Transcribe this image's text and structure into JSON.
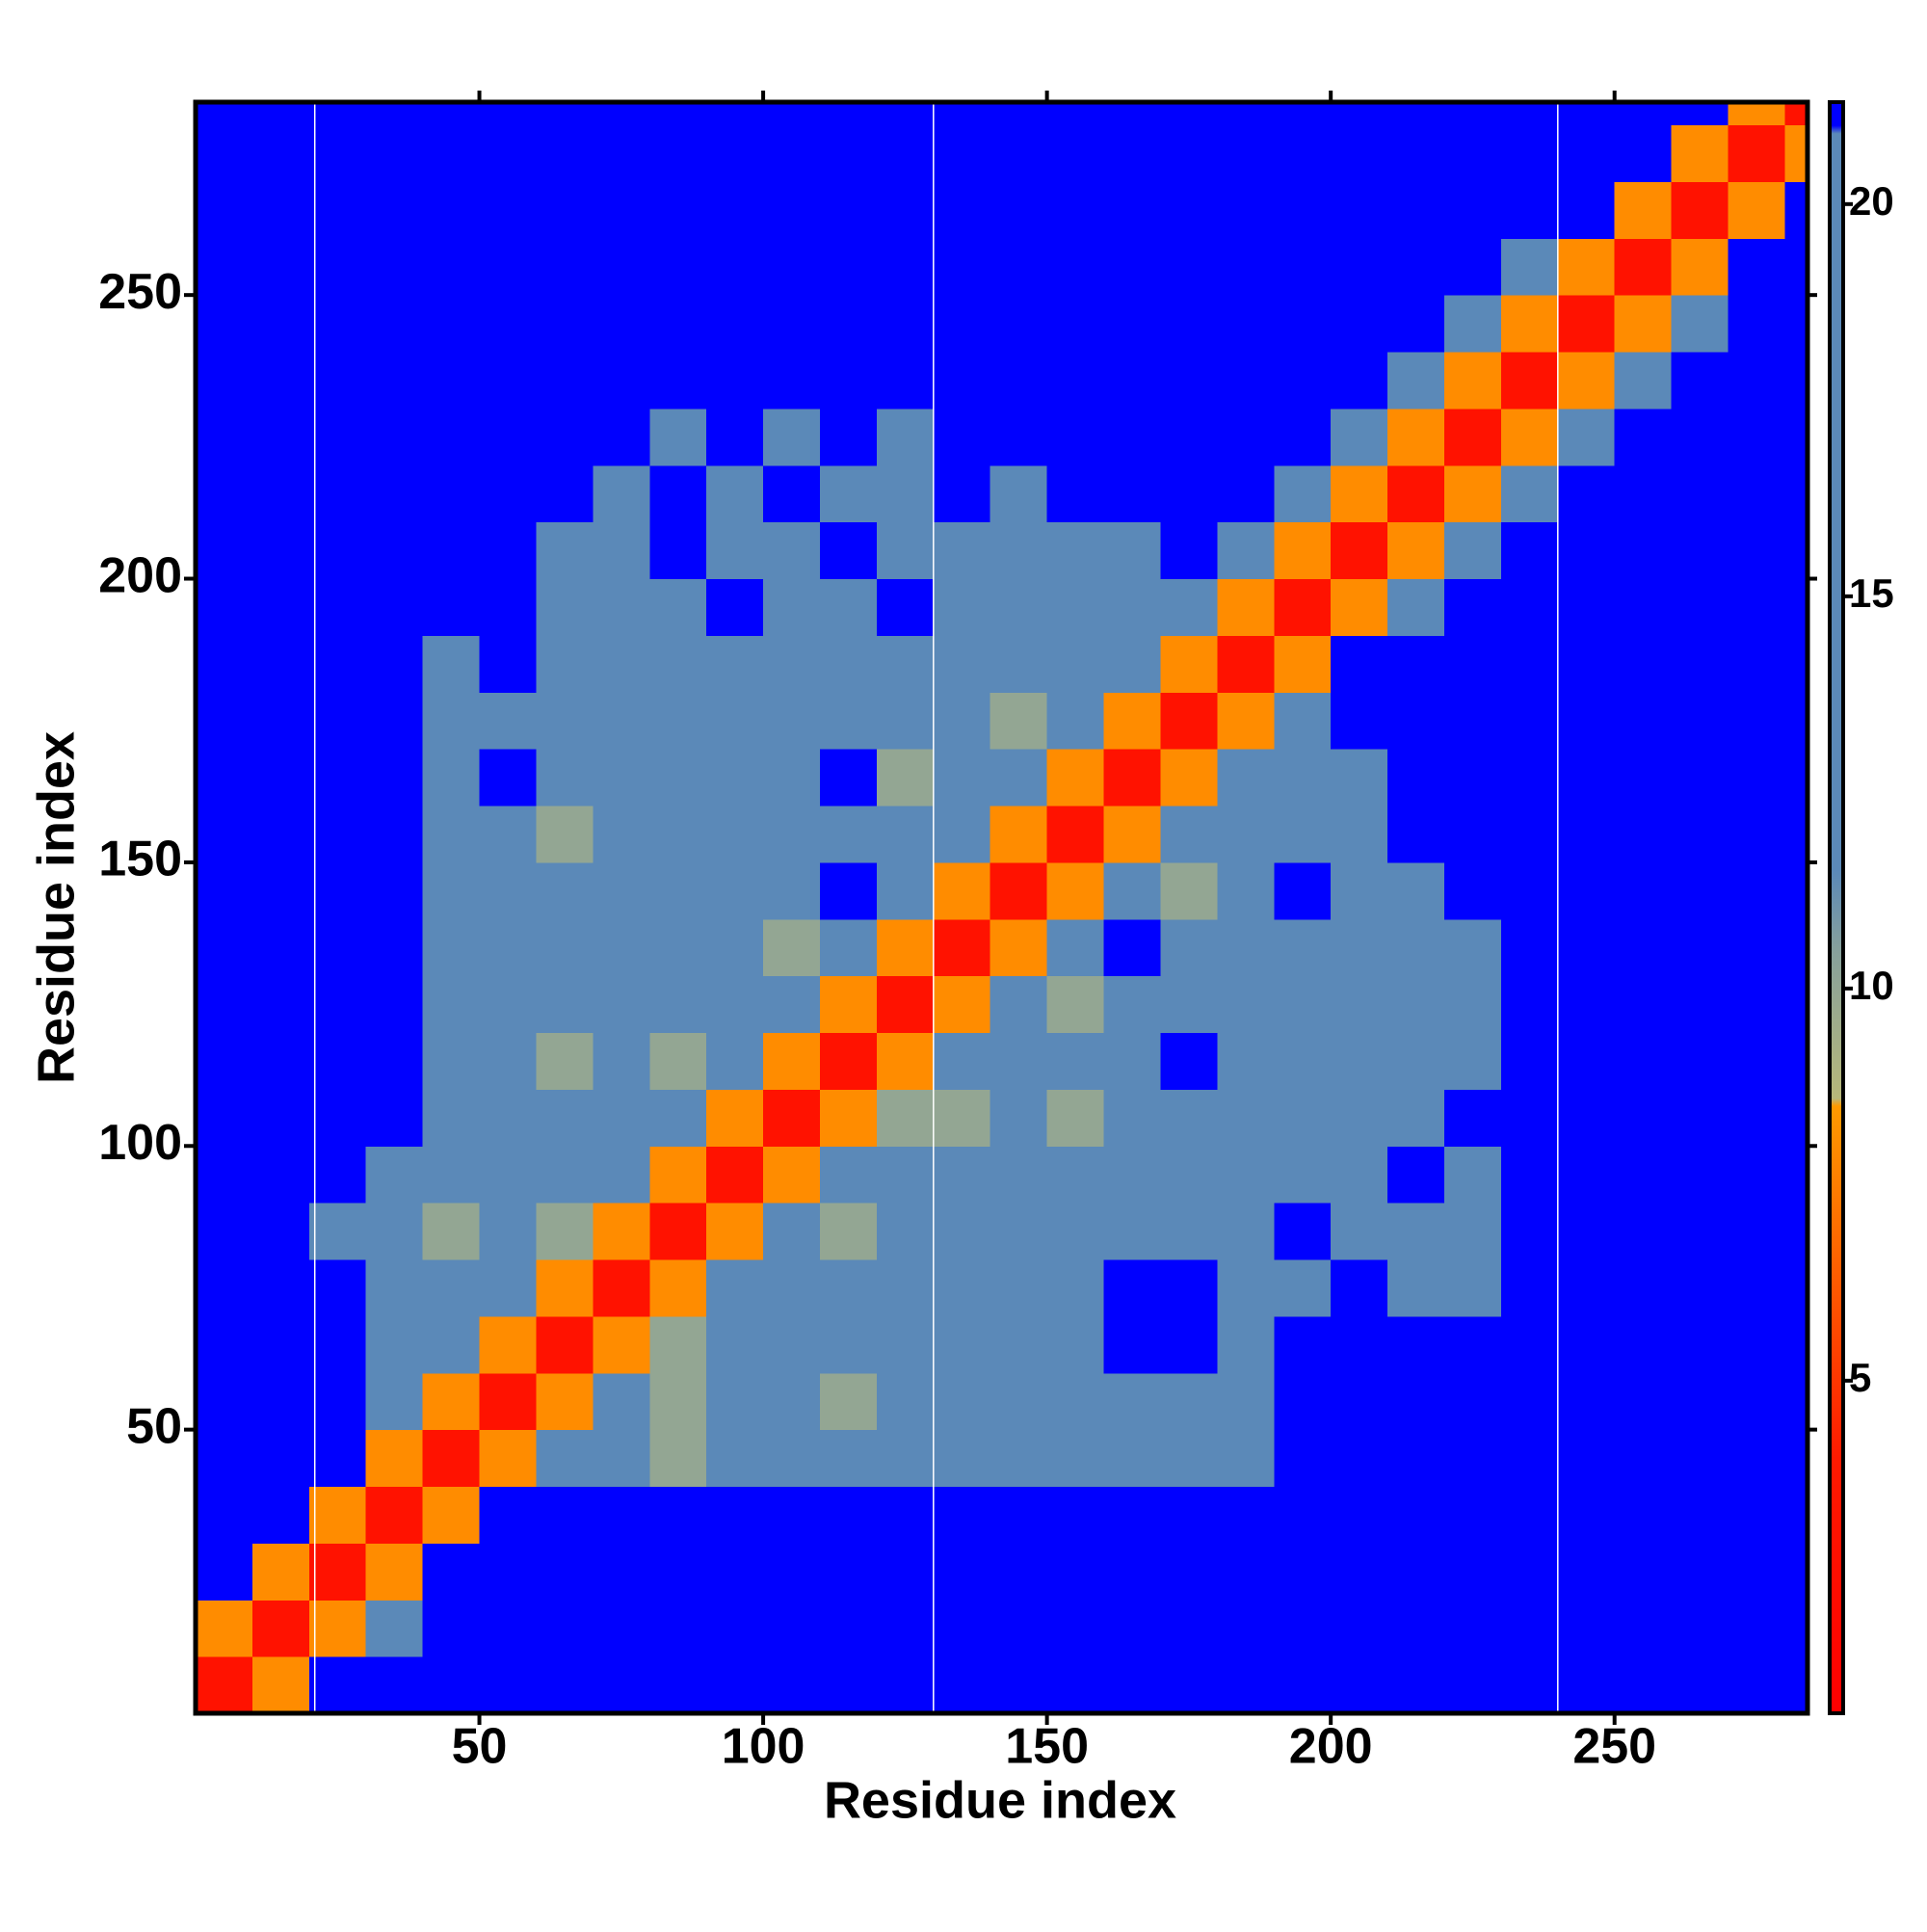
{
  "chart_data": {
    "type": "heatmap",
    "xlabel": "Residue index",
    "ylabel": "Residue index",
    "xbins": [
      0,
      10,
      20,
      30,
      40,
      50,
      60,
      70,
      80,
      90,
      100,
      110,
      120,
      130,
      140,
      150,
      160,
      170,
      180,
      190,
      200,
      210,
      220,
      230,
      240,
      250,
      260,
      270,
      280,
      284
    ],
    "ybins": [
      0,
      10,
      20,
      30,
      40,
      50,
      60,
      70,
      80,
      90,
      100,
      110,
      120,
      130,
      140,
      150,
      160,
      170,
      180,
      190,
      200,
      210,
      220,
      230,
      240,
      250,
      260,
      270,
      280,
      284
    ],
    "xlim": [
      0,
      284
    ],
    "ylim": [
      0,
      284
    ],
    "xticks": [
      50,
      100,
      150,
      200,
      250
    ],
    "yticks": [
      50,
      100,
      150,
      200,
      250
    ],
    "vlines": [
      21,
      130,
      240
    ],
    "vline_color": "#ffffff",
    "zlim": [
      0.76,
      21.3
    ],
    "zticks": [
      5,
      10,
      15,
      20
    ],
    "colorscale": [
      [
        0.76,
        "#ff0000"
      ],
      [
        4,
        "#ff1a00"
      ],
      [
        8.5,
        "#ff9a00"
      ],
      [
        8.6,
        "#b7b87a"
      ],
      [
        10.5,
        "#86a09c"
      ],
      [
        11.5,
        "#5b89b8"
      ],
      [
        20.9,
        "#5b89b8"
      ],
      [
        21,
        "#0000ff"
      ],
      [
        21.3,
        "#0000ff"
      ]
    ],
    "z": [
      [
        3,
        8,
        21,
        21,
        21,
        21,
        21,
        21,
        21,
        21,
        21,
        21,
        21,
        21,
        21,
        21,
        21,
        21,
        21,
        21,
        21,
        21,
        21,
        21,
        21,
        21,
        21,
        21,
        21
      ],
      [
        8,
        3,
        8,
        12,
        21,
        21,
        21,
        21,
        21,
        21,
        21,
        21,
        21,
        21,
        21,
        21,
        21,
        21,
        21,
        21,
        21,
        21,
        21,
        21,
        21,
        21,
        21,
        21,
        21
      ],
      [
        21,
        8,
        3,
        8,
        21,
        21,
        21,
        21,
        21,
        21,
        21,
        21,
        21,
        21,
        21,
        21,
        21,
        21,
        21,
        21,
        21,
        21,
        21,
        21,
        21,
        21,
        21,
        21,
        21
      ],
      [
        21,
        21,
        8,
        3,
        8,
        21,
        21,
        21,
        21,
        21,
        21,
        21,
        21,
        21,
        21,
        21,
        21,
        21,
        21,
        21,
        21,
        21,
        21,
        21,
        21,
        21,
        21,
        21,
        21
      ],
      [
        21,
        21,
        21,
        8,
        3,
        8,
        15,
        15,
        10,
        15,
        15,
        15,
        15,
        15,
        15,
        15,
        15,
        15,
        15,
        21,
        21,
        21,
        21,
        21,
        21,
        21,
        21,
        21,
        21
      ],
      [
        21,
        21,
        21,
        15,
        8,
        3,
        8,
        15,
        10,
        15,
        15,
        10,
        15,
        15,
        15,
        15,
        15,
        15,
        15,
        21,
        21,
        21,
        21,
        21,
        21,
        21,
        21,
        21,
        21
      ],
      [
        21,
        21,
        21,
        15,
        15,
        8,
        3,
        8,
        10,
        15,
        15,
        15,
        15,
        15,
        15,
        15,
        21,
        21,
        15,
        21,
        21,
        21,
        21,
        21,
        21,
        21,
        21,
        21,
        21
      ],
      [
        21,
        21,
        21,
        15,
        15,
        15,
        8,
        3,
        8,
        15,
        15,
        15,
        15,
        15,
        15,
        15,
        21,
        21,
        15,
        15,
        21,
        15,
        15,
        21,
        21,
        21,
        21,
        21,
        21
      ],
      [
        21,
        21,
        15,
        15,
        10,
        15,
        10,
        8,
        3,
        8,
        15,
        10,
        15,
        15,
        15,
        15,
        15,
        15,
        15,
        21,
        15,
        15,
        15,
        21,
        21,
        21,
        21,
        21,
        21
      ],
      [
        21,
        21,
        21,
        15,
        15,
        15,
        15,
        15,
        8,
        3,
        8,
        15,
        15,
        15,
        15,
        15,
        15,
        15,
        15,
        15,
        15,
        21,
        15,
        21,
        21,
        21,
        21,
        21,
        21
      ],
      [
        21,
        21,
        21,
        21,
        15,
        15,
        15,
        15,
        15,
        8,
        3,
        8,
        10,
        10,
        15,
        10,
        15,
        15,
        15,
        15,
        15,
        15,
        21,
        21,
        21,
        21,
        21,
        21,
        21
      ],
      [
        21,
        21,
        21,
        21,
        15,
        15,
        10,
        15,
        10,
        15,
        8,
        3,
        8,
        15,
        15,
        15,
        15,
        21,
        15,
        15,
        15,
        15,
        15,
        21,
        21,
        21,
        21,
        21,
        21
      ],
      [
        21,
        21,
        21,
        21,
        15,
        15,
        15,
        15,
        15,
        15,
        15,
        8,
        3,
        8,
        15,
        10,
        15,
        15,
        15,
        15,
        15,
        15,
        15,
        21,
        21,
        21,
        21,
        21,
        21
      ],
      [
        21,
        21,
        21,
        21,
        15,
        15,
        15,
        15,
        15,
        15,
        10,
        15,
        8,
        3,
        8,
        15,
        21,
        15,
        15,
        15,
        15,
        15,
        15,
        21,
        21,
        21,
        21,
        21,
        21
      ],
      [
        21,
        21,
        21,
        21,
        15,
        15,
        15,
        15,
        15,
        15,
        15,
        21,
        15,
        8,
        3,
        8,
        15,
        10,
        15,
        21,
        15,
        15,
        21,
        21,
        21,
        21,
        21,
        21,
        21
      ],
      [
        21,
        21,
        21,
        21,
        15,
        15,
        10,
        15,
        15,
        15,
        15,
        15,
        15,
        15,
        8,
        3,
        8,
        15,
        15,
        15,
        15,
        21,
        21,
        21,
        21,
        21,
        21,
        21,
        21
      ],
      [
        21,
        21,
        21,
        21,
        15,
        21,
        15,
        15,
        15,
        15,
        15,
        21,
        10,
        15,
        15,
        8,
        3,
        8,
        15,
        15,
        15,
        21,
        21,
        21,
        21,
        21,
        21,
        21,
        21
      ],
      [
        21,
        21,
        21,
        21,
        15,
        15,
        15,
        15,
        15,
        15,
        15,
        15,
        15,
        15,
        10,
        15,
        8,
        3,
        8,
        15,
        21,
        21,
        21,
        21,
        21,
        21,
        21,
        21,
        21
      ],
      [
        21,
        21,
        21,
        21,
        15,
        21,
        15,
        15,
        15,
        15,
        15,
        15,
        15,
        15,
        15,
        15,
        15,
        8,
        3,
        8,
        21,
        21,
        21,
        21,
        21,
        21,
        21,
        21,
        21
      ],
      [
        21,
        21,
        21,
        21,
        21,
        21,
        15,
        15,
        15,
        21,
        15,
        15,
        21,
        15,
        15,
        15,
        15,
        15,
        8,
        3,
        8,
        15,
        21,
        21,
        21,
        21,
        21,
        21,
        21
      ],
      [
        21,
        21,
        21,
        21,
        21,
        21,
        15,
        15,
        21,
        15,
        15,
        21,
        15,
        15,
        15,
        15,
        15,
        21,
        15,
        8,
        3,
        8,
        15,
        21,
        21,
        21,
        21,
        21,
        21
      ],
      [
        21,
        21,
        21,
        21,
        21,
        21,
        21,
        15,
        21,
        15,
        21,
        15,
        15,
        21,
        15,
        21,
        21,
        21,
        21,
        15,
        8,
        3,
        8,
        15,
        21,
        21,
        21,
        21,
        21
      ],
      [
        21,
        21,
        21,
        21,
        21,
        21,
        21,
        21,
        15,
        21,
        15,
        21,
        15,
        21,
        21,
        21,
        21,
        21,
        21,
        21,
        15,
        8,
        3,
        8,
        15,
        21,
        21,
        21,
        21
      ],
      [
        21,
        21,
        21,
        21,
        21,
        21,
        21,
        21,
        21,
        21,
        21,
        21,
        21,
        21,
        21,
        21,
        21,
        21,
        21,
        21,
        21,
        15,
        8,
        3,
        8,
        15,
        21,
        21,
        21
      ],
      [
        21,
        21,
        21,
        21,
        21,
        21,
        21,
        21,
        21,
        21,
        21,
        21,
        21,
        21,
        21,
        21,
        21,
        21,
        21,
        21,
        21,
        21,
        15,
        8,
        3,
        8,
        15,
        21,
        21
      ],
      [
        21,
        21,
        21,
        21,
        21,
        21,
        21,
        21,
        21,
        21,
        21,
        21,
        21,
        21,
        21,
        21,
        21,
        21,
        21,
        21,
        21,
        21,
        21,
        15,
        8,
        3,
        8,
        21,
        21
      ],
      [
        21,
        21,
        21,
        21,
        21,
        21,
        21,
        21,
        21,
        21,
        21,
        21,
        21,
        21,
        21,
        21,
        21,
        21,
        21,
        21,
        21,
        21,
        21,
        21,
        21,
        8,
        3,
        8,
        21
      ],
      [
        21,
        21,
        21,
        21,
        21,
        21,
        21,
        21,
        21,
        21,
        21,
        21,
        21,
        21,
        21,
        21,
        21,
        21,
        21,
        21,
        21,
        21,
        21,
        21,
        21,
        21,
        8,
        3,
        8
      ],
      [
        21,
        21,
        21,
        21,
        21,
        21,
        21,
        21,
        21,
        21,
        21,
        21,
        21,
        21,
        21,
        21,
        21,
        21,
        21,
        21,
        21,
        21,
        21,
        21,
        21,
        21,
        21,
        8,
        3
      ]
    ]
  }
}
